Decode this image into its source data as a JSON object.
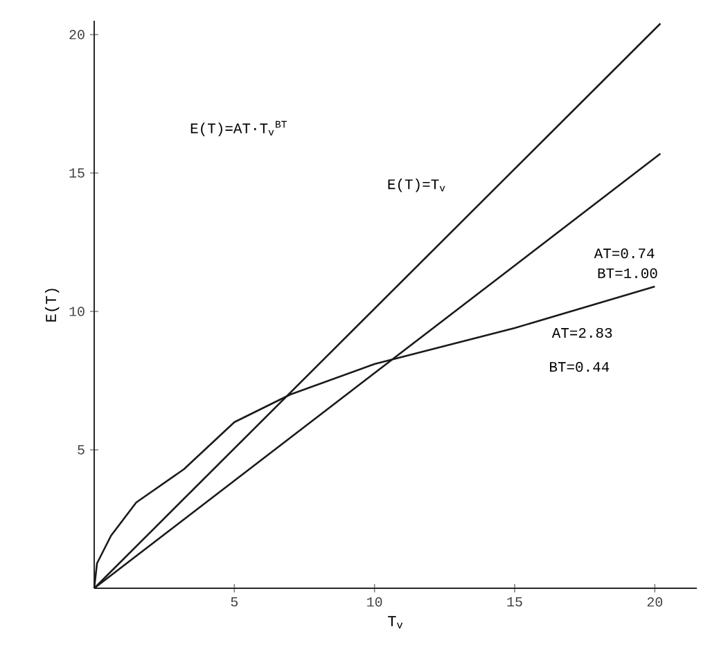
{
  "chart_data": {
    "type": "line",
    "xlabel": "T$_{v}$",
    "ylabel": "E(T)",
    "xlim": [
      0,
      21.5
    ],
    "ylim": [
      0,
      20.5
    ],
    "xticks": [
      5,
      10,
      15,
      20
    ],
    "yticks": [
      5,
      10,
      15,
      20
    ],
    "grid": false,
    "marker": "none",
    "line_style": "solid",
    "series": [
      {
        "color": "#1a1a1a",
        "x": [
          0,
          20.2
        ],
        "values": [
          0,
          20.4
        ]
      },
      {
        "color": "#1a1a1a",
        "x": [
          0,
          20.2
        ],
        "values": [
          0,
          15.7
        ]
      },
      {
        "color": "#1a1a1a",
        "x": [
          0,
          0.1,
          0.6,
          1.5,
          3.2,
          5,
          7,
          10,
          15,
          20
        ],
        "values": [
          0,
          0.9,
          1.9,
          3.1,
          4.3,
          6.0,
          7.0,
          8.1,
          9.4,
          10.9
        ]
      }
    ],
    "annotations": [
      "E(T)=AT·T$_{v}$$^{BT}$",
      "E(T)=T$_{v}$",
      "AT=0.74",
      "BT=1.00",
      "AT=2.83",
      "BT=0.44"
    ]
  }
}
